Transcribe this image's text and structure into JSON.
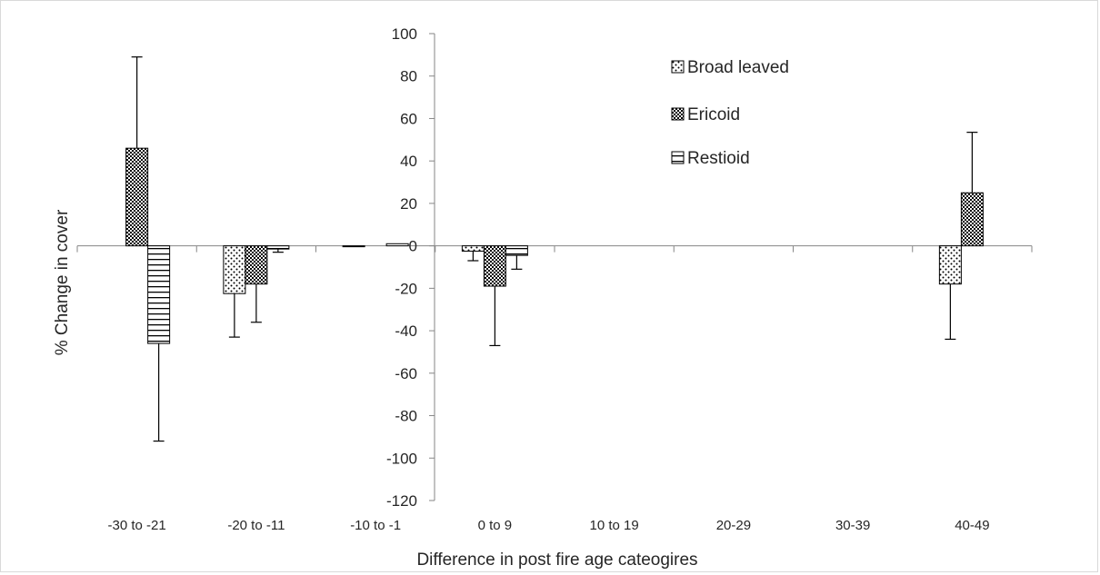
{
  "chart_data": {
    "type": "bar",
    "title": "",
    "xlabel": "Difference in post fire age cateogires",
    "ylabel": "% Change in cover",
    "ylim": [
      -120,
      100
    ],
    "yticks": [
      100,
      80,
      60,
      40,
      20,
      0,
      -20,
      -40,
      -60,
      -80,
      -100,
      -120
    ],
    "categories": [
      "-30 to -21",
      "-20 to -11",
      "-10 to -1",
      "0 to 9",
      "10 to 19",
      "20-29",
      "30-39",
      "40-49"
    ],
    "legend_position": "top-right",
    "grid": false,
    "series": [
      {
        "name": "Broad leaved",
        "pattern": "dots",
        "values": [
          null,
          -22.5,
          0,
          -2.5,
          null,
          null,
          null,
          -18
        ],
        "errors": [
          null,
          20.5,
          0,
          4.5,
          null,
          null,
          null,
          26
        ]
      },
      {
        "name": "Ericoid",
        "pattern": "crosshatch",
        "values": [
          46,
          -18,
          null,
          -19,
          null,
          null,
          null,
          25
        ],
        "errors": [
          43,
          18,
          null,
          28,
          null,
          null,
          null,
          28.5
        ]
      },
      {
        "name": "Restioid",
        "pattern": "horizontal-lines",
        "values": [
          -46,
          -1.5,
          1,
          -4.5,
          null,
          null,
          null,
          null
        ],
        "errors": [
          46,
          1.5,
          0,
          6.5,
          null,
          null,
          null,
          null
        ]
      }
    ],
    "colors": {
      "fill": "#ffffff",
      "stroke": "#000000",
      "axis": "#868686",
      "text": "#262626"
    }
  }
}
